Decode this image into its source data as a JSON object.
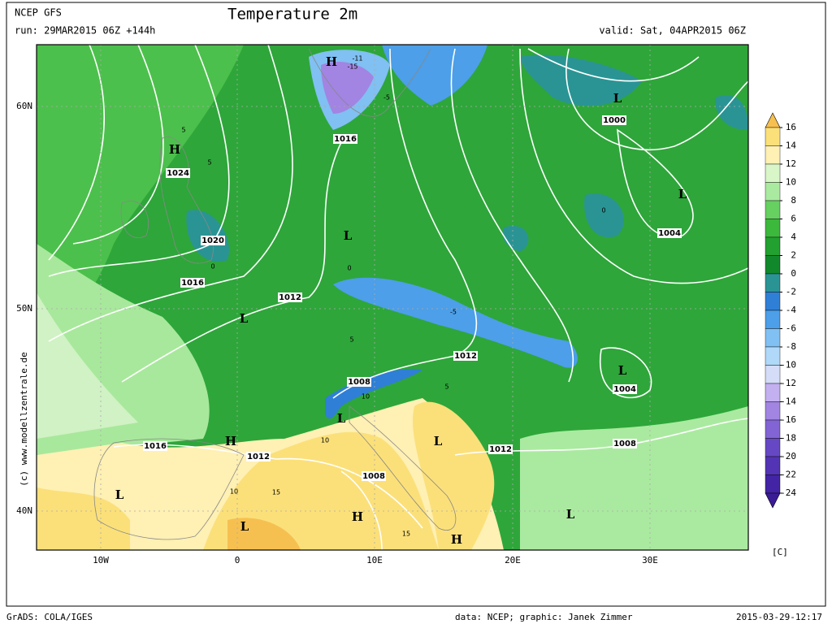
{
  "header": {
    "model": "NCEP GFS",
    "run": "run: 29MAR2015 06Z +144h",
    "title": "Temperature 2m",
    "valid": "valid: Sat, 04APR2015 06Z"
  },
  "map": {
    "lat_labels": [
      "60N",
      "50N",
      "40N"
    ],
    "lon_labels": [
      "10W",
      "0",
      "10E",
      "20E",
      "30E"
    ],
    "labels": [
      "H",
      "-11",
      "-15",
      "-5",
      "1016",
      "L",
      "1000",
      "H",
      "1024",
      "L",
      "1004",
      "1020",
      "L",
      "1016",
      "1012",
      "L",
      "-5",
      "1012",
      "L",
      "1004",
      "1008",
      "L",
      "H",
      "1016",
      "1012",
      "L",
      "1012",
      "1008",
      "1008",
      "L",
      "H",
      "L",
      "L",
      "H",
      "5",
      "5",
      "0",
      "0",
      "5",
      "10",
      "10",
      "15",
      "15",
      "10",
      "5",
      "0"
    ]
  },
  "colorbar": {
    "ticks": [
      16,
      14,
      12,
      10,
      8,
      6,
      4,
      2,
      0,
      -2,
      -4,
      -6,
      -8,
      -10,
      -12,
      -14,
      -16,
      -18,
      -20,
      -22,
      -24
    ],
    "colors": [
      "#fbe07a",
      "#fff0b4",
      "#d8f6c8",
      "#aaeaa0",
      "#66d060",
      "#3cb83c",
      "#22a030",
      "#12882c",
      "#2a9494",
      "#2f7fd6",
      "#4c9fe8",
      "#80c0f2",
      "#b0d8f8",
      "#d4dcf8",
      "#c2b0f0",
      "#a284e2",
      "#8264d4",
      "#6648c4",
      "#5234b4",
      "#4224a4"
    ],
    "over_color": "#f6c050",
    "under_color": "#3a1c96",
    "unit": "[C]"
  },
  "credit": "(c) www.modellzentrale.de",
  "footer": {
    "software": "GrADS: COLA/IGES",
    "source": "data: NCEP; graphic: Janek Zimmer",
    "timestamp": "2015-03-29-12:17"
  }
}
